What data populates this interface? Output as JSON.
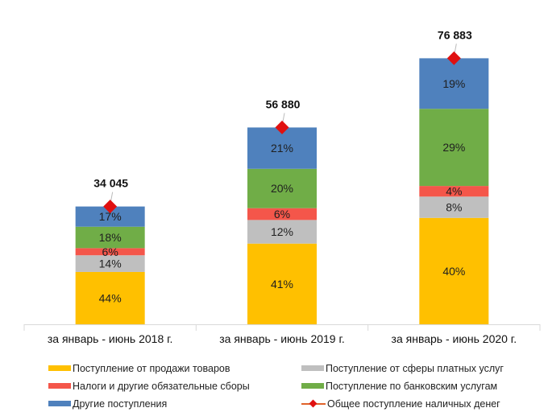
{
  "chart_data": {
    "type": "bar",
    "stacked": true,
    "title": "",
    "xlabel": "",
    "ylabel": "",
    "ylim": [
      0,
      90000
    ],
    "grid": false,
    "legend_position": "bottom",
    "categories": [
      "за январь - июнь 2018 г.",
      "за январь - июнь 2019 г.",
      "за январь - июнь 2020 г."
    ],
    "totals": [
      34045,
      56880,
      76883
    ],
    "totals_labels": [
      "34 045",
      "56 880",
      "76 883"
    ],
    "series": [
      {
        "name": "Поступление от продажи товаров",
        "color": "#ffc000",
        "percent": [
          44,
          41,
          40
        ],
        "labels": [
          "44%",
          "41%",
          "40%"
        ]
      },
      {
        "name": "Поступление от сферы платных услуг",
        "color": "#bfbfbf",
        "percent": [
          14,
          12,
          8
        ],
        "labels": [
          "14%",
          "12%",
          "8%"
        ]
      },
      {
        "name": "Налоги и другие обязательные сборы",
        "color": "#f4564a",
        "percent": [
          6,
          6,
          4
        ],
        "labels": [
          "6%",
          "6%",
          "4%"
        ]
      },
      {
        "name": "Поступление по банковским услугам",
        "color": "#70ad47",
        "percent": [
          18,
          20,
          29
        ],
        "labels": [
          "18%",
          "20%",
          "29%"
        ]
      },
      {
        "name": "Другие поступления",
        "color": "#4f81bd",
        "percent": [
          17,
          21,
          19
        ],
        "labels": [
          "17%",
          "21%",
          "19%"
        ]
      }
    ],
    "line_series": {
      "name": "Общее поступление наличных денег",
      "line_color": "#e0632a",
      "marker_color": "#e01010",
      "marker": "diamond",
      "values": [
        34045,
        56880,
        76883
      ]
    }
  },
  "legend": {
    "items": [
      {
        "label": "Поступление от продажи товаров",
        "color": "#ffc000",
        "kind": "bar"
      },
      {
        "label": "Поступление от сферы платных услуг",
        "color": "#bfbfbf",
        "kind": "bar"
      },
      {
        "label": "Налоги и другие обязательные сборы",
        "color": "#f4564a",
        "kind": "bar"
      },
      {
        "label": "Поступление по банковским услугам",
        "color": "#70ad47",
        "kind": "bar"
      },
      {
        "label": "Другие поступления",
        "color": "#4f81bd",
        "kind": "bar"
      },
      {
        "label": "Общее поступление наличных денег",
        "color": "#e0632a",
        "kind": "line"
      }
    ]
  }
}
